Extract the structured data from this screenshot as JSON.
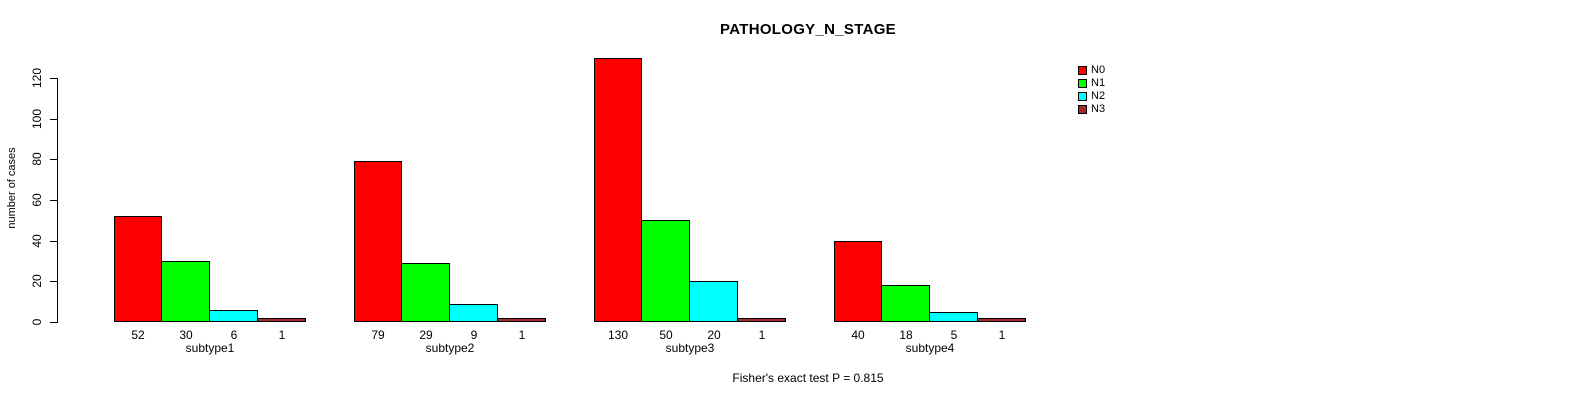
{
  "chart_data": {
    "type": "bar",
    "title": "PATHOLOGY_N_STAGE",
    "xlabel": "",
    "ylabel": "number of cases",
    "categories": [
      "subtype1",
      "subtype2",
      "subtype3",
      "subtype4"
    ],
    "series": [
      {
        "name": "N0",
        "color": "#ff0000",
        "values": [
          52,
          79,
          130,
          40
        ]
      },
      {
        "name": "N1",
        "color": "#00ff00",
        "values": [
          30,
          29,
          50,
          18
        ]
      },
      {
        "name": "N2",
        "color": "#00ffff",
        "values": [
          6,
          9,
          20,
          5
        ]
      },
      {
        "name": "N3",
        "color": "#a52a2a",
        "values": [
          1,
          1,
          1,
          1
        ]
      }
    ],
    "yticks": [
      0,
      20,
      40,
      60,
      80,
      100,
      120
    ],
    "ylim": [
      0,
      120
    ],
    "grid": false,
    "legend_position": "top-right",
    "bar_border_color": "#000000",
    "background_color": "#ffffff",
    "annotation": "Fisher's exact test P = 0.815"
  }
}
